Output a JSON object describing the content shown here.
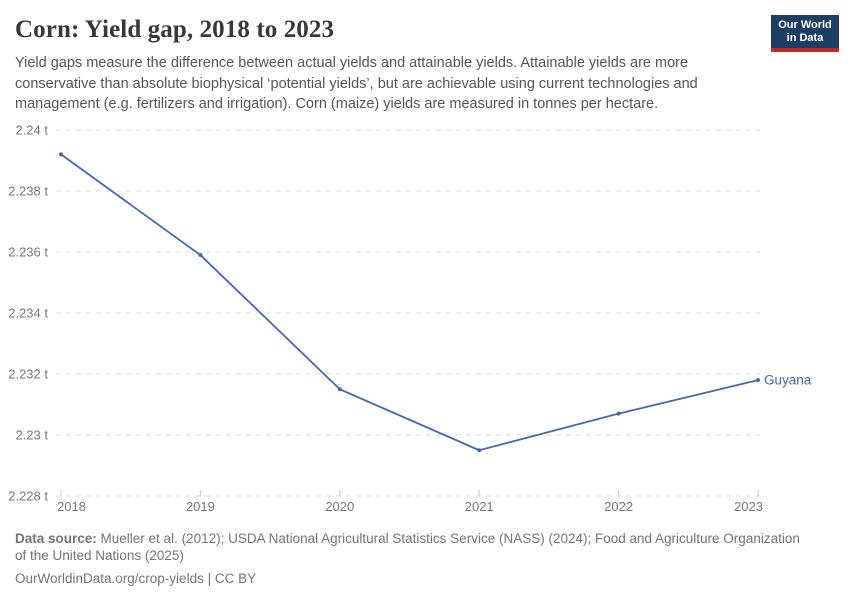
{
  "header": {
    "title": "Corn: Yield gap, 2018 to 2023",
    "subtitle": "Yield gaps measure the difference between actual yields and attainable yields. Attainable yields are more conservative than absolute biophysical ‘potential yields’, but are achievable using current technologies and management (e.g. fertilizers and irrigation). Corn (maize) yields are measured in tonnes per hectare."
  },
  "logo": {
    "line1": "Our World",
    "line2": "in Data",
    "bg_color": "#1d3d63",
    "accent_color": "#c2281e"
  },
  "chart_data": {
    "type": "line",
    "title": "Corn: Yield gap, 2018 to 2023",
    "unit": "tonnes per hectare",
    "x": [
      2018,
      2019,
      2020,
      2021,
      2022,
      2023
    ],
    "x_labels": [
      "2018",
      "2019",
      "2020",
      "2021",
      "2022",
      "2023"
    ],
    "series": [
      {
        "name": "Guyana",
        "values": [
          2.2392,
          2.2359,
          2.2315,
          2.2295,
          2.2307,
          2.2318
        ],
        "color": "#4a68a5"
      }
    ],
    "ylim": [
      2.228,
      2.24
    ],
    "yticks": [
      {
        "value": 2.228,
        "label": "2.228 t"
      },
      {
        "value": 2.23,
        "label": "2.23 t"
      },
      {
        "value": 2.232,
        "label": "2.232 t"
      },
      {
        "value": 2.234,
        "label": "2.234 t"
      },
      {
        "value": 2.236,
        "label": "2.236 t"
      },
      {
        "value": 2.238,
        "label": "2.238 t"
      },
      {
        "value": 2.24,
        "label": "2.24 t"
      }
    ],
    "grid": "horizontal-dashed",
    "legend_position": "end-of-line-label"
  },
  "footer": {
    "data_source_label": "Data source:",
    "data_source_text": " Mueller et al. (2012); USDA National Agricultural Statistics Service (NASS) (2024); Food and Agriculture Organization of the United Nations (2025)",
    "license_text": "OurWorldinData.org/crop-yields | CC BY"
  },
  "colors": {
    "title": "#383838",
    "subtitle": "#555555",
    "axis_text": "#777777",
    "gridline": "#dddddd",
    "tick_mark": "#c8c8c8",
    "line": "#4a68a5",
    "footer": "#757575"
  }
}
